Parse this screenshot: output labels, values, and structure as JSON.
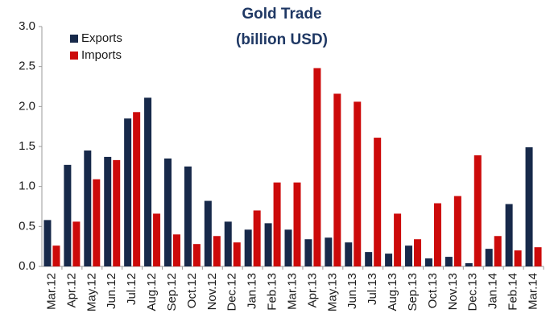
{
  "chart_data": {
    "type": "bar",
    "title": "Gold Trade",
    "subtitle": "(billion  USD)",
    "categories": [
      "Mar.12",
      "Apr.12",
      "May.12",
      "Jun.12",
      "Jul.12",
      "Aug.12",
      "Sep.12",
      "Oct.12",
      "Nov.12",
      "Dec.12",
      "Jan.13",
      "Feb.13",
      "Mar.13",
      "Apr.13",
      "May.13",
      "Jun.13",
      "Jul.13",
      "Aug.13",
      "Sep.13",
      "Oct.13",
      "Nov.13",
      "Dec.13",
      "Jan.14",
      "Feb.14",
      "Mar.14"
    ],
    "series": [
      {
        "name": "Exports",
        "color": "#17294a",
        "values": [
          0.58,
          1.27,
          1.45,
          1.37,
          1.85,
          2.11,
          1.35,
          1.25,
          0.82,
          0.56,
          0.46,
          0.54,
          0.46,
          0.34,
          0.36,
          0.3,
          0.18,
          0.16,
          0.26,
          0.1,
          0.12,
          0.04,
          0.22,
          0.78,
          1.49
        ]
      },
      {
        "name": "Imports",
        "color": "#cc0a0a",
        "values": [
          0.26,
          0.56,
          1.09,
          1.33,
          1.93,
          0.66,
          0.4,
          0.28,
          0.38,
          0.3,
          0.7,
          1.05,
          1.05,
          2.48,
          2.16,
          2.06,
          1.61,
          0.66,
          0.34,
          0.79,
          0.88,
          1.39,
          0.38,
          0.2,
          0.24
        ]
      }
    ],
    "ylim": [
      0,
      3
    ],
    "yticks": [
      {
        "value": 0,
        "label": "0.0"
      },
      0.5,
      {
        "value": 1,
        "label": "1.0"
      },
      1.5,
      {
        "value": 2,
        "label": "2.0"
      },
      2.5,
      {
        "value": 3,
        "label": "3.0"
      }
    ],
    "grid": false,
    "legend": "top-left"
  }
}
